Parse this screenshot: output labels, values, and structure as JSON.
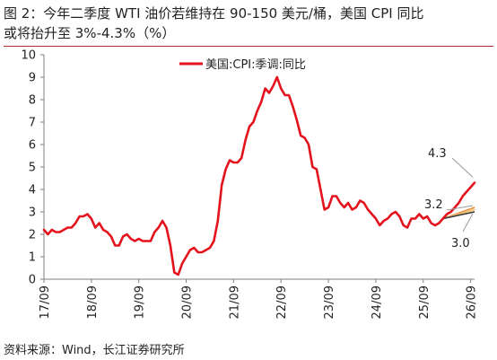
{
  "header": {
    "title_line1": "图 2：今年二季度 WTI 油价若维持在 90-150 美元/桶，美国 CPI 同比",
    "title_line2": "或将抬升至 3%-4.3%（%）"
  },
  "footer": {
    "source": "资料来源：Wind，长江证券研究所"
  },
  "colors": {
    "series": "#e3121c",
    "scenario_high": "#e8903c",
    "scenario_mid": "#f0c87a",
    "scenario_low": "#3a3a3a",
    "title_rule": "#b3262b"
  },
  "chart_data": {
    "type": "line",
    "title": "",
    "xlabel": "",
    "ylabel": "",
    "ylim": [
      0,
      10
    ],
    "yticks": [
      "0",
      "1",
      "2",
      "3",
      "4",
      "5",
      "6",
      "7",
      "8",
      "9",
      "10"
    ],
    "xticks": [
      "17/09",
      "18/09",
      "19/09",
      "20/09",
      "21/09",
      "22/09",
      "23/09",
      "24/09",
      "25/09",
      "26/09"
    ],
    "grid": false,
    "legend": "top-center",
    "series": [
      {
        "name": "美国:CPI:季调:同比",
        "start": "2017-09",
        "frequency": "monthly",
        "values": [
          2.2,
          2.0,
          2.2,
          2.1,
          2.1,
          2.2,
          2.3,
          2.3,
          2.5,
          2.8,
          2.8,
          2.9,
          2.7,
          2.3,
          2.5,
          2.2,
          2.1,
          1.9,
          1.5,
          1.5,
          1.9,
          2.0,
          1.8,
          1.7,
          1.8,
          1.7,
          1.7,
          1.7,
          2.1,
          2.3,
          2.6,
          2.3,
          1.5,
          0.3,
          0.2,
          0.7,
          1.0,
          1.3,
          1.4,
          1.2,
          1.2,
          1.3,
          1.4,
          1.7,
          2.6,
          4.2,
          4.9,
          5.3,
          5.2,
          5.2,
          5.4,
          6.2,
          6.8,
          7.0,
          7.5,
          7.9,
          8.5,
          8.3,
          8.6,
          9.0,
          8.5,
          8.2,
          8.2,
          7.7,
          7.1,
          6.4,
          6.3,
          6.0,
          5.0,
          4.9,
          4.0,
          3.1,
          3.2,
          3.7,
          3.7,
          3.4,
          3.2,
          3.4,
          3.1,
          3.2,
          3.5,
          3.4,
          3.1,
          2.9,
          2.7,
          2.4,
          2.6,
          2.7,
          2.9,
          3.0,
          2.8,
          2.4,
          2.3,
          2.7,
          2.7,
          2.9,
          2.7,
          2.8,
          2.5,
          2.4,
          2.5,
          2.7,
          2.9,
          3.0,
          3.2,
          3.4,
          3.7,
          3.9,
          4.1,
          4.3
        ]
      }
    ],
    "scenarios": [
      {
        "value": 3.2,
        "label": "3.2",
        "color": "#e8903c"
      },
      {
        "value": 3.1,
        "label": "",
        "color": "#f0c87a"
      },
      {
        "value": 3.0,
        "label": "3.0",
        "color": "#3a3a3a"
      }
    ],
    "scenario_start_index": 101,
    "scenario_end_index": 109,
    "high_label": "4.3"
  }
}
